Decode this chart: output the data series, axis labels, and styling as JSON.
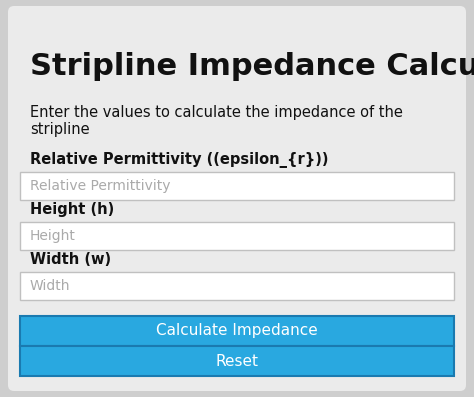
{
  "title": "Stripline Impedance Calculator",
  "subtitle_line1": "Enter the values to calculate the impedance of the",
  "subtitle_line2": "stripline",
  "bg_color": "#cecece",
  "card_color": "#ebebeb",
  "white": "#ffffff",
  "border_color": "#c0c0c0",
  "blue_btn": "#29a8e0",
  "btn_border": "#1a7ab0",
  "btn_text_color": "#ffffff",
  "label1": "Relative Permittivity ((epsilon_{r}))",
  "placeholder1": "Relative Permittivity",
  "label2": "Height (h)",
  "placeholder2": "Height",
  "label3": "Width (w)",
  "placeholder3": "Width",
  "btn1": "Calculate Impedance",
  "btn2": "Reset",
  "text_color": "#111111",
  "placeholder_color": "#aaaaaa",
  "fig_w": 4.74,
  "fig_h": 3.97,
  "dpi": 100
}
